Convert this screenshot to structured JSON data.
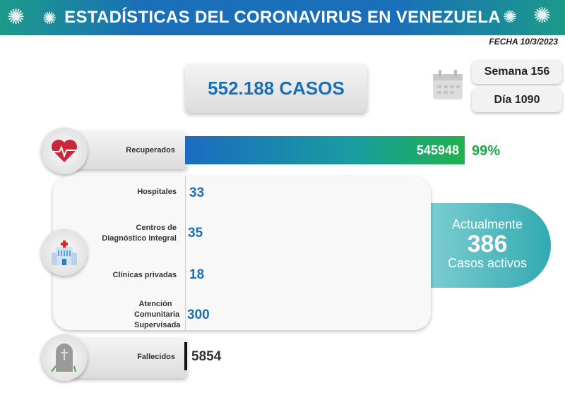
{
  "header": {
    "title": "ESTADÍSTICAS DEL CORONAVIRUS EN VENEZUELA",
    "date": "FECHA 10/3/2023"
  },
  "total_cases": "552.188 CASOS",
  "week": "Semana 156",
  "day": "Día 1090",
  "recovered": {
    "label": "Recuperados",
    "value": "545948",
    "percent": "99%",
    "fraction": 0.99
  },
  "facilities": [
    {
      "label": "Hospitales",
      "value": "33"
    },
    {
      "label": "Centros de Diagnóstico Integral",
      "value": "35"
    },
    {
      "label": "Clínicas privadas",
      "value": "18"
    },
    {
      "label": "Atención Comunitaria Supervisada",
      "value": "300"
    }
  ],
  "active": {
    "line1": "Actualmente",
    "value": "386",
    "line2": "Casos activos"
  },
  "deceased": {
    "label": "Fallecidos",
    "value": "5854"
  },
  "colors": {
    "blue": "#1b70b5",
    "green": "#19a84a",
    "teal": "#33a9b1"
  }
}
